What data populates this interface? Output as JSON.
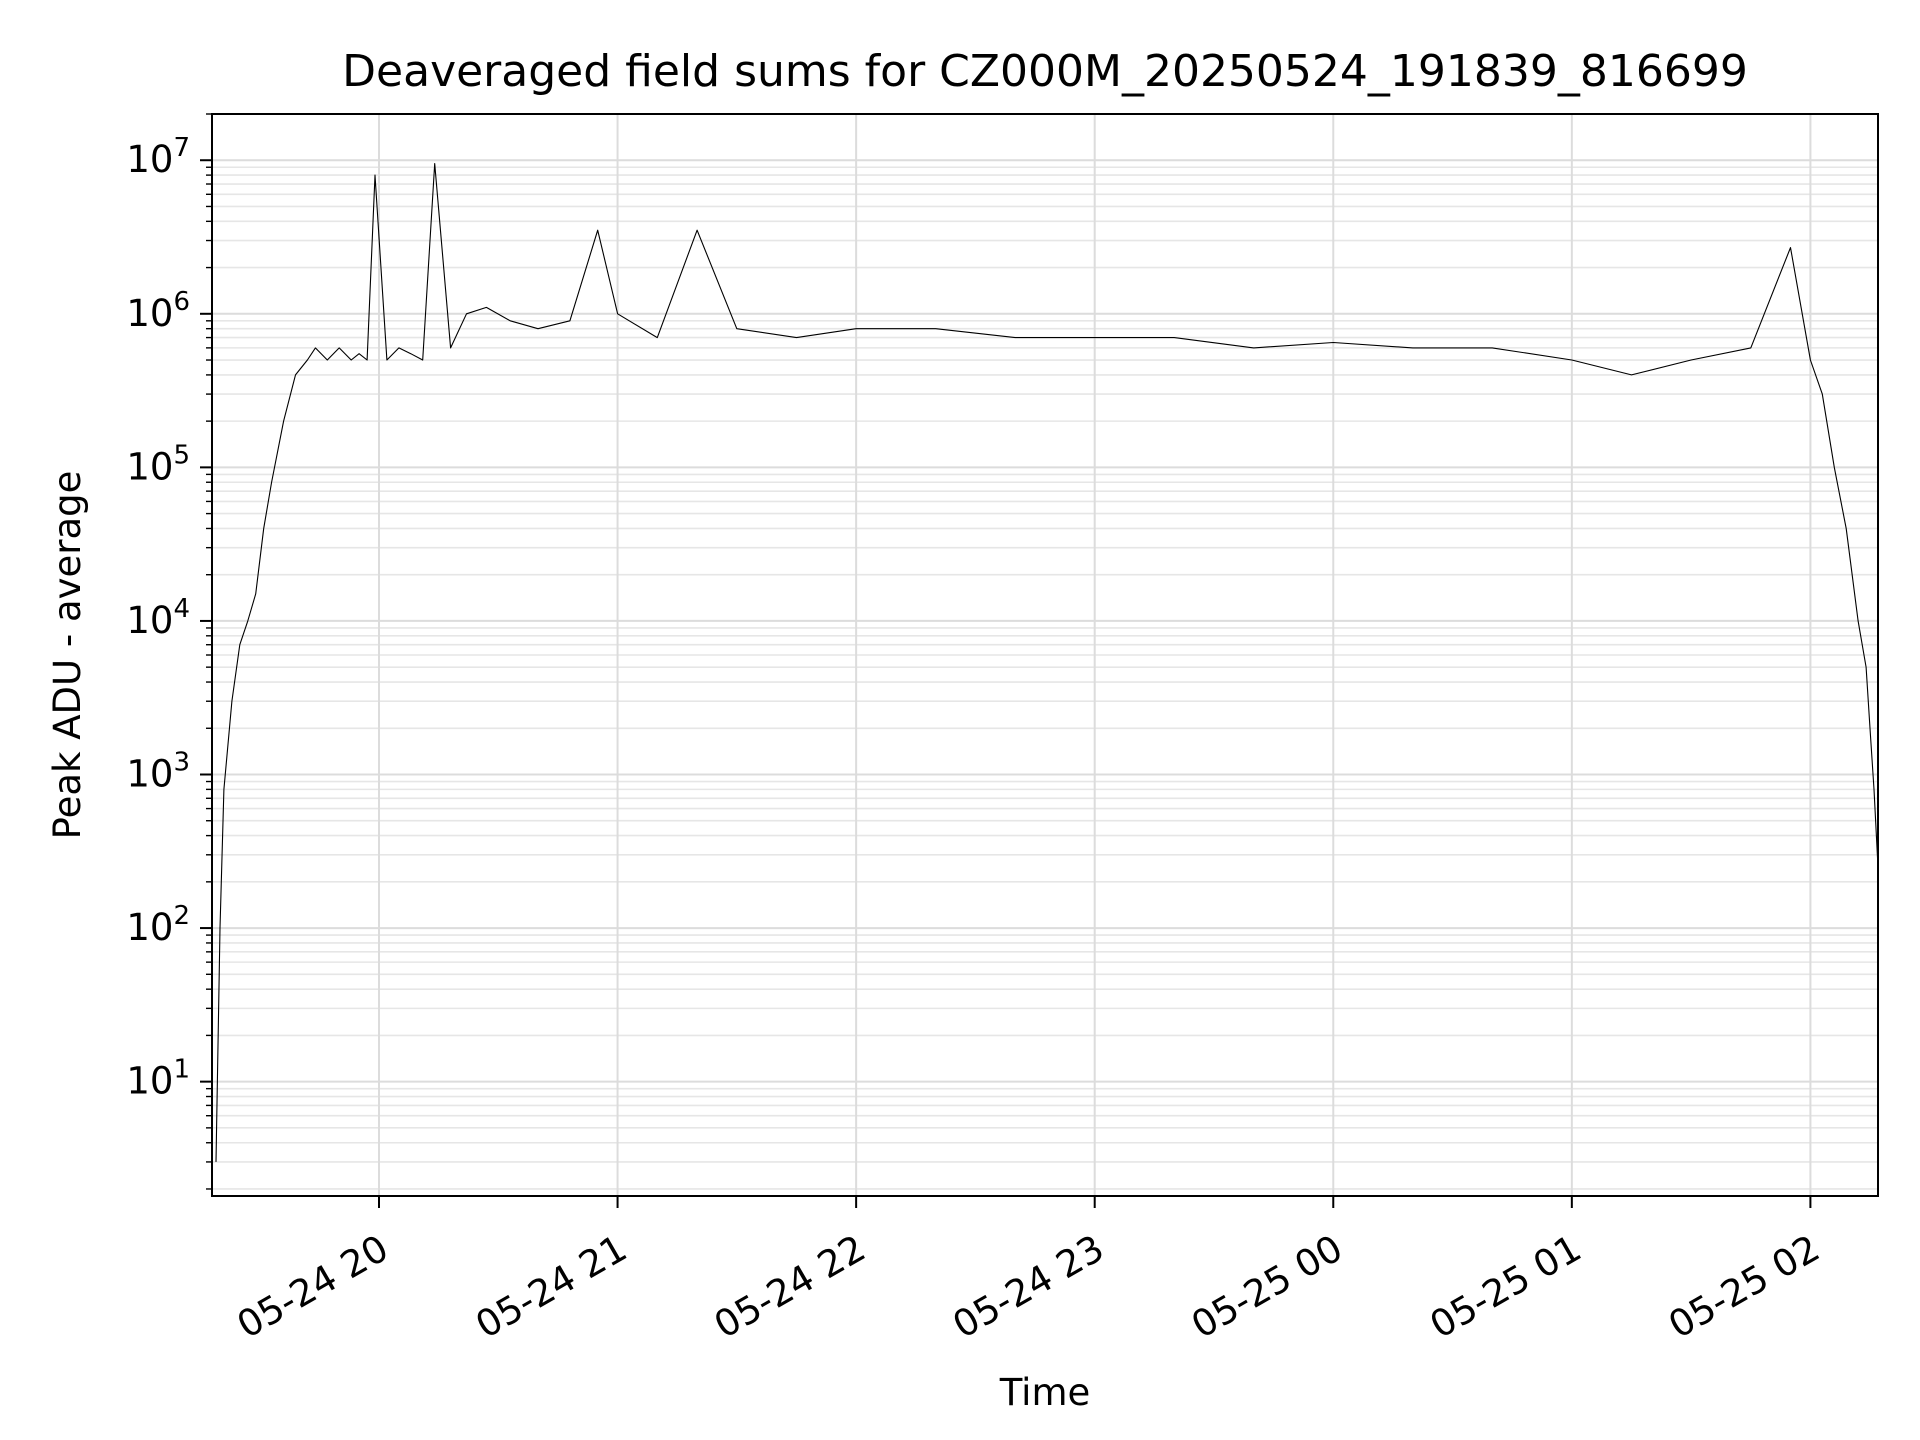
{
  "chart_data": {
    "type": "line",
    "title": "Deaveraged field sums for CZ000M_20250524_191839_816699",
    "xlabel": "Time",
    "ylabel": "Peak ADU - average",
    "yscale": "log",
    "xlim": [
      "2025-05-24 19:18",
      "2025-05-25 02:17"
    ],
    "ylim": [
      1.8,
      20000000
    ],
    "grid": "on (major and minor)",
    "x_ticks": [
      {
        "time": "2025-05-24 20:00",
        "label": "05-24 20"
      },
      {
        "time": "2025-05-24 21:00",
        "label": "05-24 21"
      },
      {
        "time": "2025-05-24 22:00",
        "label": "05-24 22"
      },
      {
        "time": "2025-05-24 23:00",
        "label": "05-24 23"
      },
      {
        "time": "2025-05-25 00:00",
        "label": "05-25 00"
      },
      {
        "time": "2025-05-25 01:00",
        "label": "05-25 01"
      },
      {
        "time": "2025-05-25 02:00",
        "label": "05-25 02"
      }
    ],
    "y_ticks": [
      {
        "base": "10",
        "exp": "1"
      },
      {
        "base": "10",
        "exp": "2"
      },
      {
        "base": "10",
        "exp": "3"
      },
      {
        "base": "10",
        "exp": "4"
      },
      {
        "base": "10",
        "exp": "5"
      },
      {
        "base": "10",
        "exp": "6"
      },
      {
        "base": "10",
        "exp": "7"
      }
    ],
    "line_color": "#000000",
    "series": [
      {
        "x": [
          "2025-05-24 19:19",
          "2025-05-24 19:20",
          "2025-05-24 19:21",
          "2025-05-24 19:23",
          "2025-05-24 19:25",
          "2025-05-24 19:27",
          "2025-05-24 19:29",
          "2025-05-24 19:31",
          "2025-05-24 19:33",
          "2025-05-24 19:36",
          "2025-05-24 19:39",
          "2025-05-24 19:42",
          "2025-05-24 19:44",
          "2025-05-24 19:47",
          "2025-05-24 19:50",
          "2025-05-24 19:53",
          "2025-05-24 19:55",
          "2025-05-24 19:57",
          "2025-05-24 19:59",
          "2025-05-24 20:02",
          "2025-05-24 20:05",
          "2025-05-24 20:08",
          "2025-05-24 20:11",
          "2025-05-24 20:14",
          "2025-05-24 20:18",
          "2025-05-24 20:22",
          "2025-05-24 20:27",
          "2025-05-24 20:33",
          "2025-05-24 20:40",
          "2025-05-24 20:48",
          "2025-05-24 20:55",
          "2025-05-24 21:00",
          "2025-05-24 21:10",
          "2025-05-24 21:20",
          "2025-05-24 21:30",
          "2025-05-24 21:45",
          "2025-05-24 22:00",
          "2025-05-24 22:20",
          "2025-05-24 22:40",
          "2025-05-24 23:00",
          "2025-05-24 23:20",
          "2025-05-24 23:40",
          "2025-05-25 00:00",
          "2025-05-25 00:20",
          "2025-05-25 00:40",
          "2025-05-25 01:00",
          "2025-05-25 01:15",
          "2025-05-25 01:30",
          "2025-05-25 01:45",
          "2025-05-25 01:55",
          "2025-05-25 02:00",
          "2025-05-25 02:03",
          "2025-05-25 02:06",
          "2025-05-25 02:09",
          "2025-05-25 02:12",
          "2025-05-25 02:14",
          "2025-05-25 02:15",
          "2025-05-25 02:16",
          "2025-05-25 02:17"
        ],
        "y": [
          3,
          100,
          800,
          3000,
          7000,
          10000,
          15000,
          40000,
          80000,
          200000,
          400000,
          500000,
          600000,
          500000,
          600000,
          500000,
          550000,
          500000,
          8000000,
          500000,
          600000,
          550000,
          500000,
          9500000,
          600000,
          1000000,
          1100000,
          900000,
          800000,
          900000,
          3500000,
          1000000,
          700000,
          3500000,
          800000,
          700000,
          800000,
          800000,
          700000,
          700000,
          700000,
          600000,
          650000,
          600000,
          600000,
          500000,
          400000,
          500000,
          600000,
          2700000,
          500000,
          300000,
          100000,
          40000,
          10000,
          5000,
          2000,
          800,
          250
        ]
      }
    ]
  }
}
